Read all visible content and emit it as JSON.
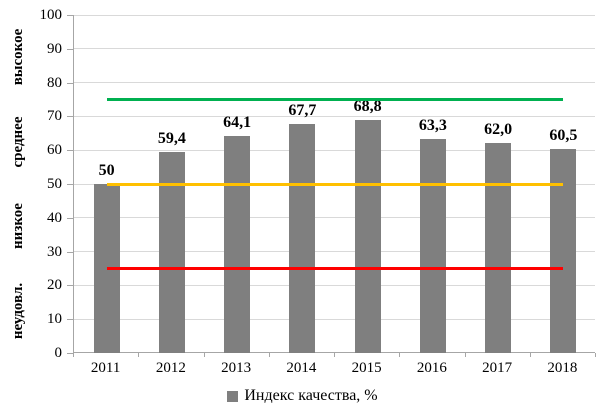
{
  "chart_data": {
    "type": "bar",
    "categories": [
      "2011",
      "2012",
      "2013",
      "2014",
      "2015",
      "2016",
      "2017",
      "2018"
    ],
    "values": [
      50,
      59.4,
      64.1,
      67.7,
      68.8,
      63.3,
      62.0,
      60.5
    ],
    "value_labels": [
      "50",
      "59,4",
      "64,1",
      "67,7",
      "68,8",
      "63,3",
      "62,0",
      "60,5"
    ],
    "series": [
      {
        "name": "Индекс качества, %",
        "values": [
          50,
          59.4,
          64.1,
          67.7,
          68.8,
          63.3,
          62.0,
          60.5
        ]
      }
    ],
    "ylim": [
      0,
      100
    ],
    "yticks": [
      0,
      10,
      20,
      30,
      40,
      50,
      60,
      70,
      80,
      90,
      100
    ],
    "grid": true,
    "legend_position": "bottom",
    "bar_color": "#7f7f7f",
    "gridline_color": "#d9d9d9",
    "axis_color": "#a6a6a6",
    "threshold_lines": [
      {
        "name": "high-threshold-line",
        "value": 75,
        "color": "#00b050"
      },
      {
        "name": "mid-threshold-line",
        "value": 50,
        "color": "#ffc000"
      },
      {
        "name": "low-threshold-line",
        "value": 25,
        "color": "#ff0000"
      }
    ],
    "band_labels": [
      {
        "label": "высокое",
        "center_value": 87.5
      },
      {
        "label": "среднее",
        "center_value": 62.5
      },
      {
        "label": "низкое",
        "center_value": 37.5
      },
      {
        "label": "неудовл.",
        "center_value": 12.5
      }
    ],
    "legend": {
      "label": "Индекс качества, %",
      "swatch_color": "#7f7f7f"
    }
  }
}
